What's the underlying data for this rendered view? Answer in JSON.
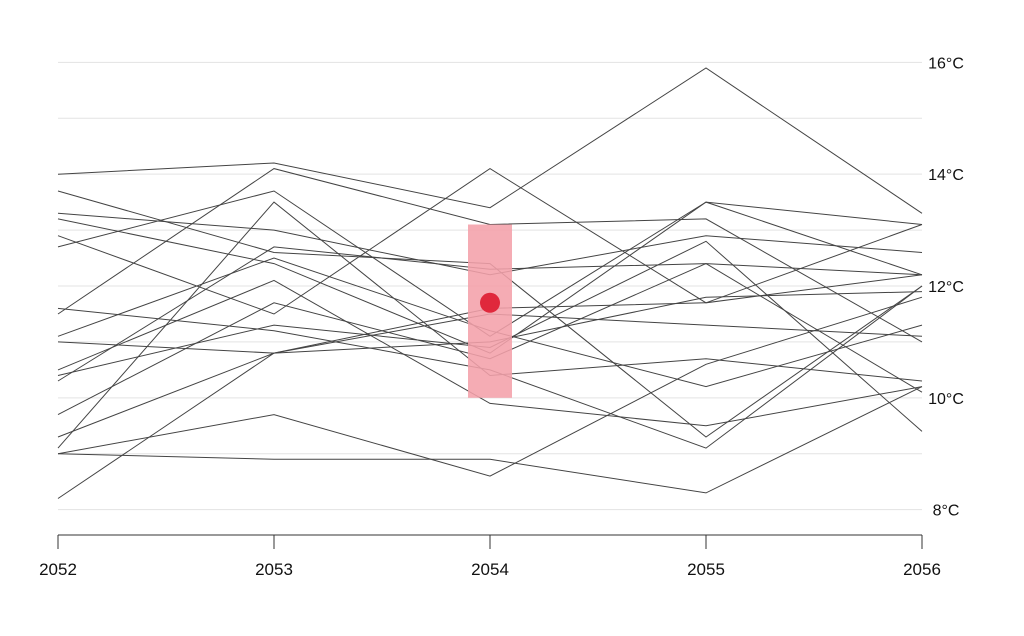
{
  "chart_data": {
    "type": "line",
    "title": "",
    "xlabel": "",
    "ylabel": "",
    "x": [
      2052,
      2053,
      2054,
      2055,
      2056
    ],
    "x_tick_labels": [
      "2052",
      "2053",
      "2054",
      "2055",
      "2056"
    ],
    "y_tick_values": [
      8,
      10,
      12,
      14,
      16
    ],
    "y_tick_labels": [
      "8°C",
      "10°C",
      "12°C",
      "14°C",
      "16°C"
    ],
    "ylim": [
      7.6,
      16.4
    ],
    "y_gridlines": [
      8,
      9,
      10,
      11,
      12,
      13,
      14,
      15,
      16
    ],
    "grid": true,
    "legend": "none",
    "line_color": "#444444",
    "highlight_color": "#f4a0aa",
    "point_color": "#e0283c",
    "series": [
      {
        "values": [
          14.0,
          14.2,
          13.4,
          15.9,
          13.3
        ]
      },
      {
        "values": [
          13.7,
          12.6,
          12.4,
          9.3,
          12.0
        ]
      },
      {
        "values": [
          13.3,
          13.0,
          12.2,
          12.9,
          12.6
        ]
      },
      {
        "values": [
          13.2,
          12.4,
          10.8,
          13.5,
          12.2
        ]
      },
      {
        "values": [
          12.7,
          13.7,
          11.1,
          13.5,
          13.1
        ]
      },
      {
        "values": [
          12.9,
          11.5,
          14.1,
          11.7,
          12.2
        ]
      },
      {
        "values": [
          11.6,
          11.2,
          10.5,
          9.1,
          12.0
        ]
      },
      {
        "values": [
          11.5,
          14.1,
          13.1,
          13.2,
          11.0
        ]
      },
      {
        "values": [
          11.1,
          12.5,
          11.2,
          10.2,
          11.3
        ]
      },
      {
        "values": [
          10.4,
          11.3,
          10.9,
          12.8,
          9.4
        ]
      },
      {
        "values": [
          10.3,
          12.7,
          12.3,
          12.4,
          12.2
        ]
      },
      {
        "values": [
          11.0,
          10.8,
          11.5,
          11.3,
          11.1
        ]
      },
      {
        "values": [
          10.5,
          12.1,
          9.9,
          9.5,
          10.2
        ]
      },
      {
        "values": [
          9.7,
          11.7,
          10.7,
          12.4,
          10.1
        ]
      },
      {
        "values": [
          9.3,
          10.8,
          11.0,
          11.8,
          11.9
        ]
      },
      {
        "values": [
          9.1,
          13.5,
          10.4,
          10.7,
          10.3
        ]
      },
      {
        "values": [
          9.0,
          9.7,
          8.6,
          10.6,
          11.8
        ]
      },
      {
        "values": [
          9.0,
          8.9,
          8.9,
          8.3,
          10.2
        ]
      },
      {
        "values": [
          8.2,
          10.8,
          11.6,
          11.7,
          13.1
        ]
      }
    ],
    "highlight": {
      "x": 2054,
      "y_low": 10.0,
      "y_high": 13.1,
      "point_y": 11.7
    }
  }
}
